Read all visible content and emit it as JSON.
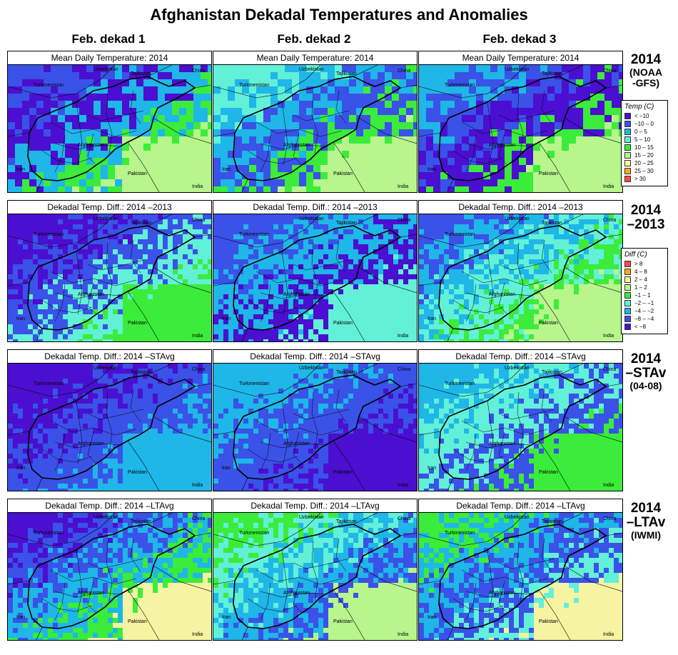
{
  "title": "Afghanistan Dekadal Temperatures and Anomalies",
  "columns": [
    "Feb. dekad 1",
    "Feb. dekad 2",
    "Feb. dekad 3"
  ],
  "row_labels": [
    {
      "line1": "2014",
      "line2": "(NOAA",
      "line3": "-GFS)"
    },
    {
      "line1": "2014",
      "line2": "–2013",
      "line3": ""
    },
    {
      "line1": "2014",
      "line2": "–STAv",
      "line3": "(04-08)"
    },
    {
      "line1": "2014",
      "line2": "–LTAv",
      "line3": "(IWMI)"
    }
  ],
  "panel_titles": [
    "Mean Daily Temperature: 2014",
    "Dekadal Temp. Diff.: 2014 –2013",
    "Dekadal Temp. Diff.: 2014 –STAvg",
    "Dekadal Temp. Diff.: 2014 –LTAvg"
  ],
  "map_labels": {
    "uzbekistan": "Uzbekistan",
    "tajikistan": "Tajikistan",
    "china": "China",
    "turkmenistan": "Turkmenistan",
    "afghanistan": "Afghanistan",
    "iran": "Iran",
    "pakistan": "Pakistan",
    "india": "India"
  },
  "legend_temp": {
    "title": "Temp (C)",
    "items": [
      {
        "label": "< −10",
        "color": "#4a0fd0"
      },
      {
        "label": "−10 – 0",
        "color": "#3a52e8"
      },
      {
        "label": "0 – 5",
        "color": "#1fb6e8"
      },
      {
        "label": "5 – 10",
        "color": "#62f0d8"
      },
      {
        "label": "10 – 15",
        "color": "#3bec3b"
      },
      {
        "label": "15 – 20",
        "color": "#b8f58c"
      },
      {
        "label": "20 – 25",
        "color": "#f6f3a2"
      },
      {
        "label": "25 – 30",
        "color": "#ffaa18"
      },
      {
        "label": "> 30",
        "color": "#ff4a4a"
      }
    ]
  },
  "legend_diff": {
    "title": "Diff (C)",
    "items": [
      {
        "label": "> 8",
        "color": "#ff4a4a"
      },
      {
        "label": "4 – 8",
        "color": "#ffaa18"
      },
      {
        "label": "2 – 4",
        "color": "#f6f3a2"
      },
      {
        "label": "1 – 2",
        "color": "#b8f58c"
      },
      {
        "label": "−1 – 1",
        "color": "#3bec3b"
      },
      {
        "label": "−2 – −1",
        "color": "#62f0d8"
      },
      {
        "label": "−4 – −2",
        "color": "#1fb6e8"
      },
      {
        "label": "−8 – −4",
        "color": "#3a52e8"
      },
      {
        "label": "< −8",
        "color": "#4a0fd0"
      }
    ]
  },
  "panels": [
    {
      "dominant": [
        "#3a52e8",
        "#4a0fd0",
        "#1fb6e8",
        "#3bec3b",
        "#b8f58c"
      ]
    },
    {
      "dominant": [
        "#62f0d8",
        "#1fb6e8",
        "#3a52e8",
        "#3bec3b",
        "#b8f58c"
      ]
    },
    {
      "dominant": [
        "#1fb6e8",
        "#3a52e8",
        "#4a0fd0",
        "#3bec3b",
        "#b8f58c"
      ]
    },
    {
      "dominant": [
        "#4a0fd0",
        "#3a52e8",
        "#62f0d8",
        "#3bec3b"
      ]
    },
    {
      "dominant": [
        "#3a52e8",
        "#1fb6e8",
        "#4a0fd0",
        "#62f0d8"
      ]
    },
    {
      "dominant": [
        "#3a52e8",
        "#1fb6e8",
        "#62f0d8",
        "#3bec3b",
        "#b8f58c"
      ]
    },
    {
      "dominant": [
        "#4a0fd0",
        "#3a52e8",
        "#1fb6e8"
      ]
    },
    {
      "dominant": [
        "#1fb6e8",
        "#3a52e8",
        "#4a0fd0"
      ]
    },
    {
      "dominant": [
        "#1fb6e8",
        "#62f0d8",
        "#3a52e8",
        "#3bec3b"
      ]
    },
    {
      "dominant": [
        "#4a0fd0",
        "#3a52e8",
        "#1fb6e8",
        "#3bec3b",
        "#f6f3a2"
      ]
    },
    {
      "dominant": [
        "#3bec3b",
        "#62f0d8",
        "#1fb6e8",
        "#3a52e8",
        "#b8f58c"
      ]
    },
    {
      "dominant": [
        "#3bec3b",
        "#1fb6e8",
        "#3a52e8",
        "#62f0d8",
        "#f6f3a2"
      ]
    }
  ]
}
